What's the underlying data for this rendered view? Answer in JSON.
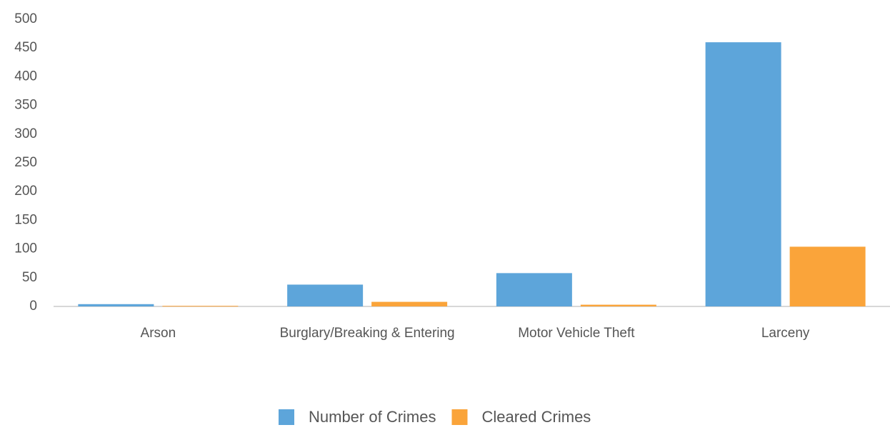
{
  "chart_data": {
    "type": "bar",
    "categories": [
      "Arson",
      "Burglary/Breaking & Entering",
      "Motor Vehicle Theft",
      "Larceny"
    ],
    "series": [
      {
        "name": "Number of Crimes",
        "color": "#5da5da",
        "values": [
          4,
          38,
          58,
          460
        ]
      },
      {
        "name": "Cleared Crimes",
        "color": "#faa43a",
        "values": [
          1,
          8,
          3,
          104
        ]
      }
    ],
    "ylim": [
      0,
      500
    ],
    "yticks": [
      0,
      50,
      100,
      150,
      200,
      250,
      300,
      350,
      400,
      450,
      500
    ],
    "grid": false,
    "legend": "bottom"
  }
}
